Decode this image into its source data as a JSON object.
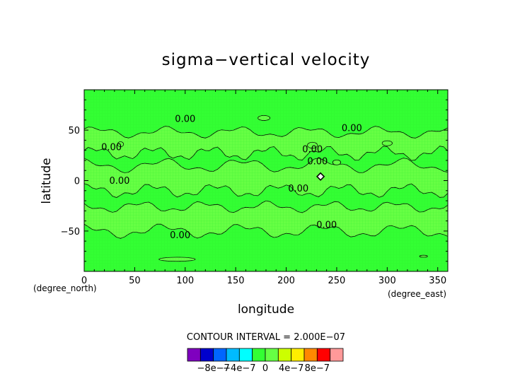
{
  "chart_data": {
    "type": "heatmap",
    "title": "sigma−vertical velocity",
    "xlabel": "longitude",
    "ylabel": "latitude",
    "x_unit": "(degree_east)",
    "y_unit": "(degree_north)",
    "xlim": [
      0,
      360
    ],
    "ylim": [
      -90,
      90
    ],
    "x_ticks": [
      0,
      50,
      100,
      150,
      200,
      250,
      300,
      350
    ],
    "y_ticks": [
      -50,
      0,
      50
    ],
    "x_tick_labels": [
      "0",
      "50",
      "100",
      "150",
      "200",
      "250",
      "300",
      "350"
    ],
    "y_tick_labels": [
      "−50",
      "0",
      "50"
    ],
    "contour_interval_text": "CONTOUR INTERVAL = 2.000E−07",
    "contour_labels": [
      {
        "text": "0.00",
        "lon": 100,
        "lat": 58
      },
      {
        "text": "0.00",
        "lon": 265,
        "lat": 49
      },
      {
        "text": "0.00",
        "lon": 27,
        "lat": 30
      },
      {
        "text": "0.00",
        "lon": 226,
        "lat": 28
      },
      {
        "text": "0.00",
        "lon": 231,
        "lat": 16
      },
      {
        "text": "0.00",
        "lon": 35,
        "lat": -3
      },
      {
        "text": "0.00",
        "lon": 212,
        "lat": -11
      },
      {
        "text": "0.00",
        "lon": 240,
        "lat": -47
      },
      {
        "text": "0.00",
        "lon": 95,
        "lat": -57
      }
    ],
    "colorbar": {
      "colors": [
        "#7f00bf",
        "#0000cd",
        "#0066ff",
        "#00bbff",
        "#00ffff",
        "#33ff33",
        "#66ff44",
        "#ccff00",
        "#ffee00",
        "#ff8800",
        "#ff0000",
        "#ff9999"
      ],
      "tick_labels": [
        "−8e−7",
        "−4e−7",
        "0",
        "4e−7",
        "8e−7"
      ],
      "tick_index": [
        2,
        4,
        6,
        8,
        10
      ]
    },
    "field_colors": {
      "base": "#33ff33",
      "positive": "#66ff44"
    },
    "marker": {
      "lon": 234,
      "lat": 4,
      "shape": "diamond"
    }
  }
}
